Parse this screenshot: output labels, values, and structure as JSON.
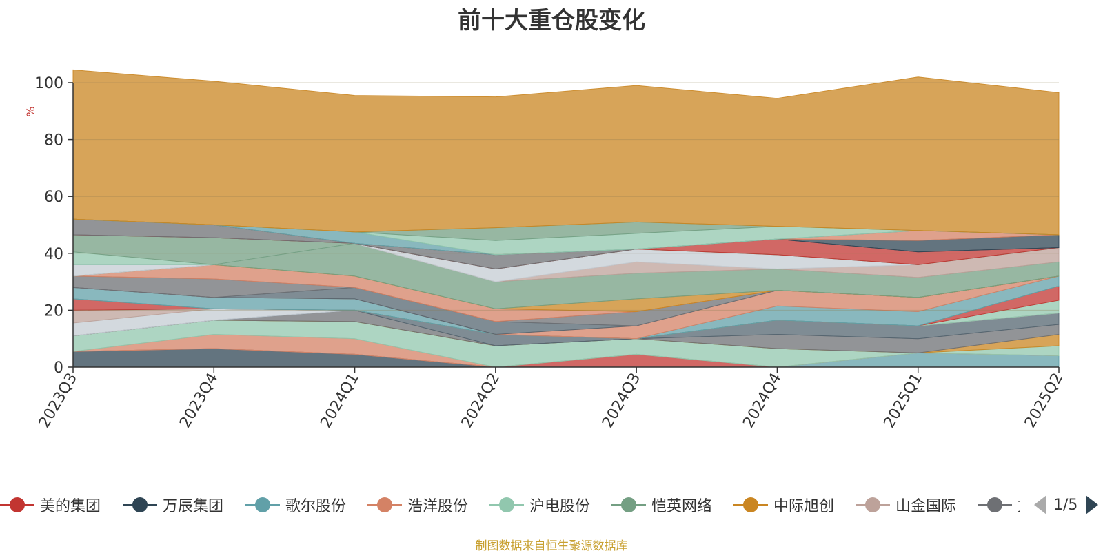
{
  "chart_data": {
    "type": "area",
    "stacked": true,
    "title": "前十大重仓股变化",
    "ylabel": "%",
    "ylim": [
      0,
      100
    ],
    "yticks": [
      0,
      20,
      40,
      60,
      80,
      100
    ],
    "categories": [
      "2023Q3",
      "2023Q4",
      "2024Q1",
      "2024Q2",
      "2024Q3",
      "2024Q4",
      "2025Q1",
      "2025Q2"
    ],
    "series": [
      {
        "name": "万辰集团",
        "color": "#2f4554",
        "values": [
          5.5,
          6.5,
          4.5,
          0,
          0,
          0,
          0,
          0
        ]
      },
      {
        "name": "美的集团",
        "color": "#c23531",
        "values": [
          0,
          0,
          0,
          0,
          4.5,
          0,
          0,
          0
        ]
      },
      {
        "name": "歌尔股份",
        "color": "#61a0a8",
        "values": [
          0,
          0,
          0,
          0,
          0,
          0,
          5,
          4
        ]
      },
      {
        "name": "浩洋股份",
        "color": "#d48265",
        "values": [
          0,
          5,
          5.5,
          0,
          0,
          0,
          0,
          0
        ]
      },
      {
        "name": "沪电股份",
        "color": "#91c7ae",
        "values": [
          5.5,
          5,
          6,
          7.5,
          5.5,
          6.5,
          0,
          3.5
        ]
      },
      {
        "name": "中际旭创",
        "color": "#ca8622",
        "values": [
          0,
          0,
          0,
          0,
          0,
          0,
          0,
          4
        ]
      },
      {
        "name": "",
        "color": "#6e7074",
        "values": [
          0,
          0,
          4,
          0,
          0,
          5,
          5,
          3.5
        ]
      },
      {
        "name": "",
        "color": "#546570",
        "values": [
          0,
          0,
          0,
          4,
          0,
          5,
          4.5,
          4
        ]
      },
      {
        "name": "",
        "color": "#c4ccd3",
        "values": [
          4.5,
          4,
          0,
          0,
          0,
          0,
          0,
          0
        ]
      },
      {
        "name": "山金国际",
        "color": "#bda29a",
        "values": [
          4.5,
          0,
          0,
          0,
          0,
          0,
          0,
          0
        ]
      },
      {
        "name": "",
        "color": "#91c7ae",
        "values": [
          0,
          0,
          0,
          0,
          0,
          0,
          0,
          4.5
        ]
      },
      {
        "name": "",
        "color": "#c23531",
        "values": [
          4,
          0,
          0,
          0,
          0,
          0,
          0,
          5
        ]
      },
      {
        "name": "",
        "color": "#749f83",
        "values": [
          0,
          0,
          0,
          0,
          0,
          0,
          0,
          0
        ]
      },
      {
        "name": "",
        "color": "#61a0a8",
        "values": [
          4,
          4,
          4,
          0,
          0,
          5,
          5,
          3.5
        ]
      },
      {
        "name": "",
        "color": "#d48265",
        "values": [
          0,
          0,
          0,
          0,
          4.5,
          5.5,
          5,
          0
        ]
      },
      {
        "name": "",
        "color": "#546570",
        "values": [
          0,
          0,
          4,
          4.5,
          0,
          0,
          0,
          0
        ]
      },
      {
        "name": "",
        "color": "#6e7074",
        "values": [
          4,
          6.5,
          0,
          0,
          5,
          0,
          0,
          0
        ]
      },
      {
        "name": "",
        "color": "#d48265",
        "values": [
          0,
          5,
          4,
          4.5,
          0,
          0,
          0,
          0
        ]
      },
      {
        "name": "",
        "color": "#ca8622",
        "values": [
          0,
          0,
          0,
          0,
          4.5,
          0,
          0,
          0
        ]
      },
      {
        "name": "恺英网络",
        "color": "#749f83",
        "values": [
          0,
          0,
          11.5,
          9.5,
          9,
          7.5,
          7,
          5
        ]
      },
      {
        "name": "",
        "color": "#bda29a",
        "values": [
          0,
          0,
          0,
          0,
          4,
          0,
          4.5,
          5
        ]
      },
      {
        "name": "",
        "color": "#c4ccd3",
        "values": [
          4,
          0,
          0,
          4.5,
          4.5,
          5,
          0,
          0
        ]
      },
      {
        "name": "",
        "color": "#91c7ae",
        "values": [
          4.5,
          0,
          0,
          0,
          0,
          0,
          0,
          0
        ]
      },
      {
        "name": "",
        "color": "#749f83",
        "values": [
          6,
          9.5,
          0,
          0,
          0,
          0,
          0,
          0
        ]
      },
      {
        "name": "",
        "color": "#c23531",
        "values": [
          0,
          0,
          0,
          0,
          0,
          5.5,
          4.5,
          0
        ]
      },
      {
        "name": "",
        "color": "#6e7074",
        "values": [
          5.5,
          4.5,
          0,
          5,
          0,
          0,
          0,
          0
        ]
      },
      {
        "name": "",
        "color": "#2f4554",
        "values": [
          0,
          0,
          0,
          0,
          0,
          0,
          4,
          4.5
        ]
      },
      {
        "name": "",
        "color": "#d48265",
        "values": [
          0,
          0,
          0,
          0,
          0,
          0,
          3.5,
          0
        ]
      },
      {
        "name": "",
        "color": "#61a0a8",
        "values": [
          0,
          0,
          4,
          0,
          0,
          0,
          0,
          0
        ]
      },
      {
        "name": "",
        "color": "#91c7ae",
        "values": [
          0,
          0,
          0,
          5,
          5.5,
          4.5,
          0,
          0
        ]
      },
      {
        "name": "",
        "color": "#749f83",
        "values": [
          0,
          0,
          0,
          4.5,
          4,
          0,
          0,
          0
        ]
      },
      {
        "name": "",
        "color": "#ca8622",
        "values": [
          52.5,
          50.5,
          48,
          46,
          48,
          45,
          54,
          50
        ]
      }
    ]
  },
  "legend": {
    "items": [
      {
        "label": "美的集团",
        "color": "#c23531"
      },
      {
        "label": "万辰集团",
        "color": "#2f4554"
      },
      {
        "label": "歌尔股份",
        "color": "#61a0a8"
      },
      {
        "label": "浩洋股份",
        "color": "#d48265"
      },
      {
        "label": "沪电股份",
        "color": "#91c7ae"
      },
      {
        "label": "恺英网络",
        "color": "#749f83"
      },
      {
        "label": "中际旭创",
        "color": "#ca8622"
      },
      {
        "label": "山金国际",
        "color": "#bda29a"
      },
      {
        "label": "文",
        "color": "#6e7074"
      }
    ],
    "page_indicator": "1/5"
  },
  "source_note": "制图数据来自恒生聚源数据库"
}
